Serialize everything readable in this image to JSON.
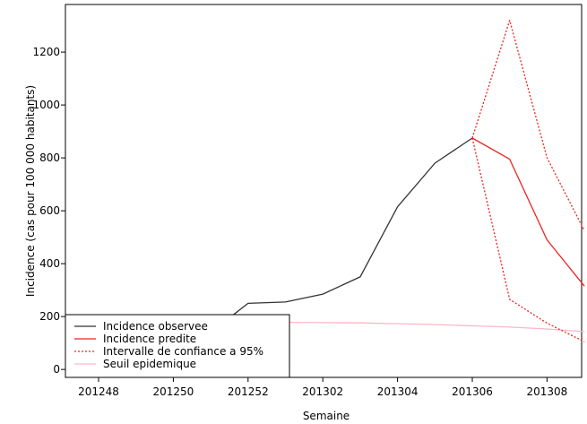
{
  "chart_data": {
    "type": "line",
    "xlabel": "Semaine",
    "ylabel": "Incidence (cas pour 100 000 habitants)",
    "x_ticks": [
      "201248",
      "201250",
      "201252",
      "201302",
      "201304",
      "201306",
      "201308"
    ],
    "y_ticks": [
      0,
      200,
      400,
      600,
      800,
      1000,
      1200
    ],
    "ylim": [
      -30,
      1380
    ],
    "grid": false,
    "legend_position": "bottom-left",
    "series": [
      {
        "name": "Incidence observee",
        "color": "#333333",
        "style": "solid",
        "x": [
          "201248",
          "201249",
          "201250",
          "201251",
          "201252",
          "201301",
          "201302",
          "201303",
          "201304",
          "201305",
          "201306"
        ],
        "values": [
          35,
          50,
          80,
          140,
          250,
          255,
          285,
          350,
          615,
          780,
          875
        ]
      },
      {
        "name": "Incidence predite",
        "color": "#ee2222",
        "style": "solid",
        "x": [
          "201306",
          "201307",
          "201308",
          "201309"
        ],
        "values": [
          875,
          795,
          490,
          315
        ]
      },
      {
        "name": "Intervalle de confiance a 95%",
        "color": "#ee2222",
        "style": "dotted",
        "x": [
          "201306",
          "201307",
          "201308",
          "201309"
        ],
        "values": [
          875,
          1320,
          800,
          525
        ],
        "lower_values": [
          875,
          265,
          175,
          105
        ]
      },
      {
        "name": "Seuil epidemique",
        "color": "#ffb6c8",
        "style": "solid",
        "x": [
          "201248",
          "201249",
          "201250",
          "201251",
          "201252",
          "201301",
          "201302",
          "201303",
          "201304",
          "201305",
          "201306",
          "201307",
          "201308",
          "201309"
        ],
        "values": [
          178,
          178,
          179,
          179,
          178,
          178,
          177,
          176,
          173,
          170,
          165,
          160,
          153,
          143
        ]
      }
    ]
  }
}
